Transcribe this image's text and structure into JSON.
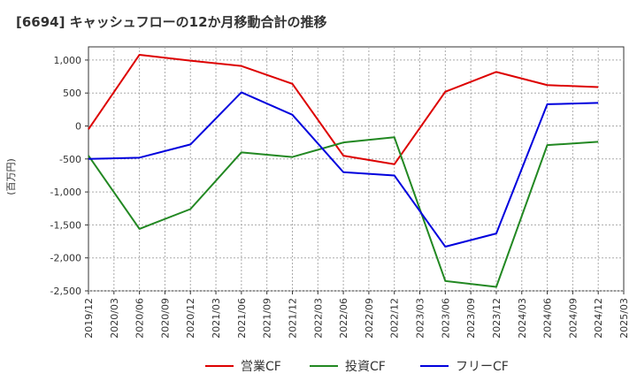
{
  "chart_data": {
    "type": "line",
    "title": "[6694]  キャッシュフローの12か月移動合計の推移",
    "ylabel": "(百万円)",
    "xlabel": "",
    "ylim": [
      -2500,
      1200
    ],
    "yticks": [
      1000,
      500,
      0,
      -500,
      -1000,
      -1500,
      -2000,
      -2500
    ],
    "ytick_labels": [
      "1,000",
      "500",
      "0",
      "-500",
      "-1,000",
      "-1,500",
      "-2,000",
      "-2,500"
    ],
    "x_categories": [
      "2019/12",
      "2020/03",
      "2020/06",
      "2020/09",
      "2020/12",
      "2021/03",
      "2021/06",
      "2021/09",
      "2021/12",
      "2022/03",
      "2022/06",
      "2022/09",
      "2022/12",
      "2023/03",
      "2023/06",
      "2023/09",
      "2023/12",
      "2024/03",
      "2024/06",
      "2024/09",
      "2024/12",
      "2025/03"
    ],
    "grid": true,
    "legend_position": "bottom",
    "series": [
      {
        "name": "営業CF",
        "color": "#dd0000",
        "points": [
          {
            "x": "2019/12",
            "y": -50
          },
          {
            "x": "2020/06",
            "y": 1080
          },
          {
            "x": "2020/12",
            "y": 990
          },
          {
            "x": "2021/06",
            "y": 910
          },
          {
            "x": "2021/12",
            "y": 640
          },
          {
            "x": "2022/06",
            "y": -450
          },
          {
            "x": "2022/12",
            "y": -580
          },
          {
            "x": "2023/06",
            "y": 520
          },
          {
            "x": "2023/12",
            "y": 820
          },
          {
            "x": "2024/06",
            "y": 620
          },
          {
            "x": "2024/12",
            "y": 590
          }
        ]
      },
      {
        "name": "投資CF",
        "color": "#228822",
        "points": [
          {
            "x": "2019/12",
            "y": -450
          },
          {
            "x": "2020/06",
            "y": -1560
          },
          {
            "x": "2020/12",
            "y": -1260
          },
          {
            "x": "2021/06",
            "y": -400
          },
          {
            "x": "2021/12",
            "y": -470
          },
          {
            "x": "2022/06",
            "y": -250
          },
          {
            "x": "2022/12",
            "y": -170
          },
          {
            "x": "2023/06",
            "y": -2350
          },
          {
            "x": "2023/12",
            "y": -2440
          },
          {
            "x": "2024/06",
            "y": -290
          },
          {
            "x": "2024/12",
            "y": -240
          }
        ]
      },
      {
        "name": "フリーCF",
        "color": "#0000dd",
        "points": [
          {
            "x": "2019/12",
            "y": -500
          },
          {
            "x": "2020/06",
            "y": -480
          },
          {
            "x": "2020/12",
            "y": -280
          },
          {
            "x": "2021/06",
            "y": 510
          },
          {
            "x": "2021/12",
            "y": 170
          },
          {
            "x": "2022/06",
            "y": -700
          },
          {
            "x": "2022/12",
            "y": -750
          },
          {
            "x": "2023/06",
            "y": -1830
          },
          {
            "x": "2023/12",
            "y": -1630
          },
          {
            "x": "2024/06",
            "y": 330
          },
          {
            "x": "2024/12",
            "y": 350
          }
        ]
      }
    ]
  }
}
